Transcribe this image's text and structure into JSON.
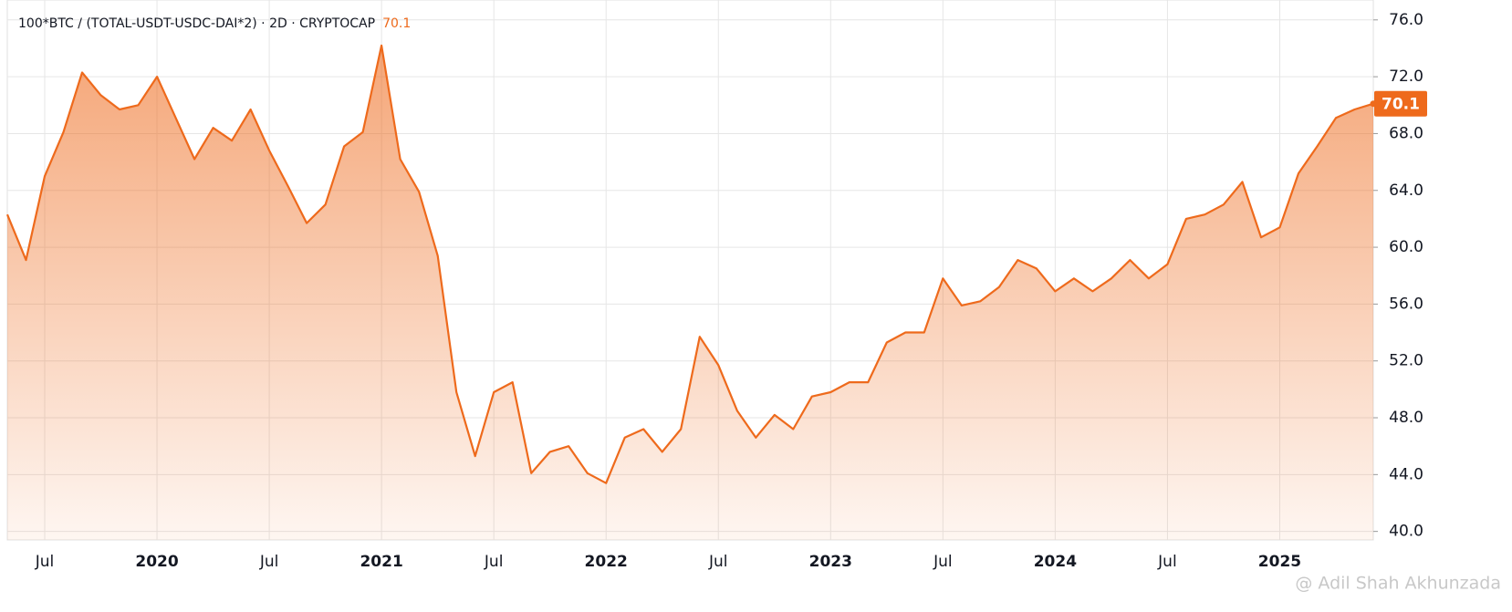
{
  "chart_data": {
    "type": "area",
    "title": "100*BTC / (TOTAL-USDT-USDC-DAI*2) · 2D · CRYPTOCAP",
    "watermark": "@ Adil Shah Akhunzada",
    "color": "#ee6a1c",
    "grid": true,
    "x": [
      "2019-05",
      "2019-06",
      "2019-07",
      "2019-08",
      "2019-09",
      "2019-10",
      "2019-11",
      "2019-12",
      "2020-01",
      "2020-02",
      "2020-03",
      "2020-04",
      "2020-05",
      "2020-06",
      "2020-07",
      "2020-08",
      "2020-09",
      "2020-10",
      "2020-11",
      "2020-12",
      "2021-01",
      "2021-02",
      "2021-03",
      "2021-04",
      "2021-05",
      "2021-06",
      "2021-07",
      "2021-08",
      "2021-09",
      "2021-10",
      "2021-11",
      "2021-12",
      "2022-01",
      "2022-02",
      "2022-03",
      "2022-04",
      "2022-05",
      "2022-06",
      "2022-07",
      "2022-08",
      "2022-09",
      "2022-10",
      "2022-11",
      "2022-12",
      "2023-01",
      "2023-02",
      "2023-03",
      "2023-04",
      "2023-05",
      "2023-06",
      "2023-07",
      "2023-08",
      "2023-09",
      "2023-10",
      "2023-11",
      "2023-12",
      "2024-01",
      "2024-02",
      "2024-03",
      "2024-04",
      "2024-05",
      "2024-06",
      "2024-07",
      "2024-08",
      "2024-09",
      "2024-10",
      "2024-11",
      "2024-12",
      "2025-01",
      "2025-02",
      "2025-03",
      "2025-04",
      "2025-05",
      "2025-06"
    ],
    "values": [
      62.3,
      59.1,
      65,
      68.1,
      72.3,
      70.7,
      69.7,
      70,
      72,
      69.1,
      66.2,
      68.4,
      67.5,
      69.7,
      66.8,
      64.3,
      61.7,
      63,
      67.1,
      68.1,
      74.2,
      66.2,
      63.9,
      59.4,
      49.8,
      45.3,
      49.8,
      50.5,
      44.1,
      45.6,
      46,
      44.1,
      43.4,
      46.6,
      47.2,
      45.6,
      47.2,
      53.7,
      51.7,
      48.5,
      46.6,
      48.2,
      47.2,
      49.5,
      49.8,
      50.5,
      50.5,
      53.3,
      54,
      54,
      57.8,
      55.9,
      56.2,
      57.2,
      59.1,
      58.5,
      56.9,
      57.8,
      56.9,
      57.8,
      59.1,
      57.8,
      58.8,
      62,
      62.3,
      63,
      64.6,
      60.7,
      61.4,
      65.2,
      67.1,
      69.1,
      69.7,
      70.1
    ],
    "xlim": [
      "2019-05",
      "2025-06"
    ],
    "xticks": [
      {
        "value": "2019-07",
        "label": "Jul"
      },
      {
        "value": "2020-01",
        "label": "2020"
      },
      {
        "value": "2020-07",
        "label": "Jul"
      },
      {
        "value": "2021-01",
        "label": "2021"
      },
      {
        "value": "2021-07",
        "label": "Jul"
      },
      {
        "value": "2022-01",
        "label": "2022"
      },
      {
        "value": "2022-07",
        "label": "Jul"
      },
      {
        "value": "2023-01",
        "label": "2023"
      },
      {
        "value": "2023-07",
        "label": "Jul"
      },
      {
        "value": "2024-01",
        "label": "2024"
      },
      {
        "value": "2024-07",
        "label": "Jul"
      },
      {
        "value": "2025-01",
        "label": "2025"
      }
    ],
    "ylim": [
      39.4,
      77.4
    ],
    "yticks": [
      {
        "value": 40,
        "label": "40.0"
      },
      {
        "value": 44,
        "label": "44.0"
      },
      {
        "value": 48,
        "label": "48.0"
      },
      {
        "value": 52,
        "label": "52.0"
      },
      {
        "value": 56,
        "label": "56.0"
      },
      {
        "value": 60,
        "label": "60.0"
      },
      {
        "value": 64,
        "label": "64.0"
      },
      {
        "value": 68,
        "label": "68.0"
      },
      {
        "value": 72,
        "label": "72.0"
      },
      {
        "value": 76,
        "label": "76.0"
      }
    ]
  }
}
